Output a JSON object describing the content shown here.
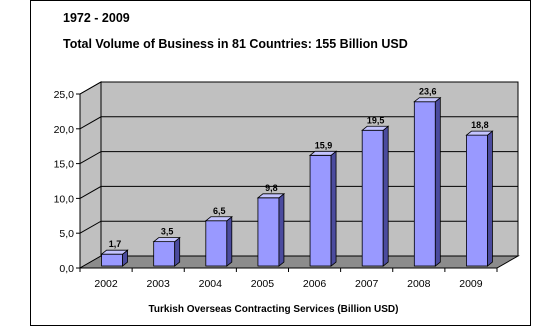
{
  "header": {
    "line1": "1972 - 2009",
    "line2": "Total Volume of Business in 81 Countries: 155 Billion USD"
  },
  "colors": {
    "bar_front": "#9999ff",
    "bar_side": "#4b4b9e",
    "bar_top": "#c4c4ff",
    "wall": "#c0c0c0",
    "floor": "#8c8c8c"
  },
  "chart_data": {
    "type": "bar",
    "title": "1972 - 2009 Total Volume of Business in 81 Countries: 155 Billion USD",
    "xlabel": "Turkish Overseas Contracting Services (Billion USD)",
    "ylabel": "",
    "categories": [
      "2002",
      "2003",
      "2004",
      "2005",
      "2006",
      "2007",
      "2008",
      "2009"
    ],
    "values": [
      1.7,
      3.5,
      6.5,
      9.8,
      15.9,
      19.5,
      23.6,
      18.8
    ],
    "data_labels": [
      "1,7",
      "3,5",
      "6,5",
      "9,8",
      "15,9",
      "19,5",
      "23,6",
      "18,8"
    ],
    "ylim": [
      0,
      25
    ],
    "yticks": [
      "0,0",
      "5,0",
      "10,0",
      "15,0",
      "20,0",
      "25,0"
    ],
    "grid": true,
    "style": "3d"
  }
}
